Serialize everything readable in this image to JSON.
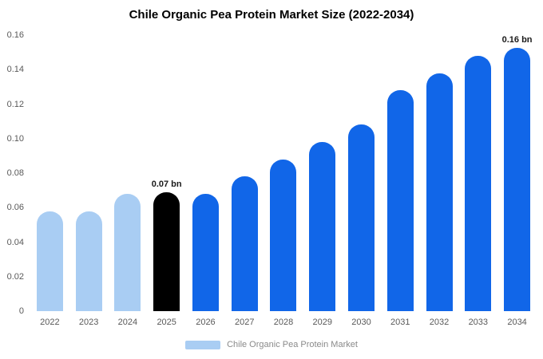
{
  "chart_data": {
    "type": "bar",
    "title": "Chile Organic Pea Protein Market Size (2022-2034)",
    "categories": [
      "2022",
      "2023",
      "2024",
      "2025",
      "2026",
      "2027",
      "2028",
      "2029",
      "2030",
      "2031",
      "2032",
      "2033",
      "2034"
    ],
    "values": [
      0.058,
      0.058,
      0.068,
      0.069,
      0.068,
      0.078,
      0.088,
      0.098,
      0.108,
      0.128,
      0.138,
      0.148,
      0.158
    ],
    "bar_colors": [
      "#a9cdf3",
      "#a9cdf3",
      "#a9cdf3",
      "#000000",
      "#1166e8",
      "#1166e8",
      "#1166e8",
      "#1166e8",
      "#1166e8",
      "#1166e8",
      "#1166e8",
      "#1166e8",
      "#1166e8"
    ],
    "xlabel": "",
    "ylabel": "",
    "ylim": [
      0,
      0.16
    ],
    "grid": false,
    "legend_position": "bottom",
    "y_ticks": [
      {
        "label": "0.16",
        "value": 0.16
      },
      {
        "label": "0.14",
        "value": 0.14
      },
      {
        "label": "0.12",
        "value": 0.12
      },
      {
        "label": "0.10",
        "value": 0.1
      },
      {
        "label": "0.08",
        "value": 0.08
      },
      {
        "label": "0.06",
        "value": 0.06
      },
      {
        "label": "0.04",
        "value": 0.04
      },
      {
        "label": "0.02",
        "value": 0.02
      },
      {
        "label": "0",
        "value": 0
      }
    ],
    "annotations": [
      {
        "index": 3,
        "category": "2025",
        "text": "0.07 bn"
      },
      {
        "index": 12,
        "category": "2034",
        "text": "0.16 bn"
      }
    ],
    "legend": [
      {
        "label": "Chile Organic Pea Protein Market",
        "color": "#a9cdf3"
      }
    ],
    "colors": {
      "primary": "#1166e8",
      "historical": "#a9cdf3",
      "highlight": "#000000",
      "background": "#ffffff"
    }
  }
}
